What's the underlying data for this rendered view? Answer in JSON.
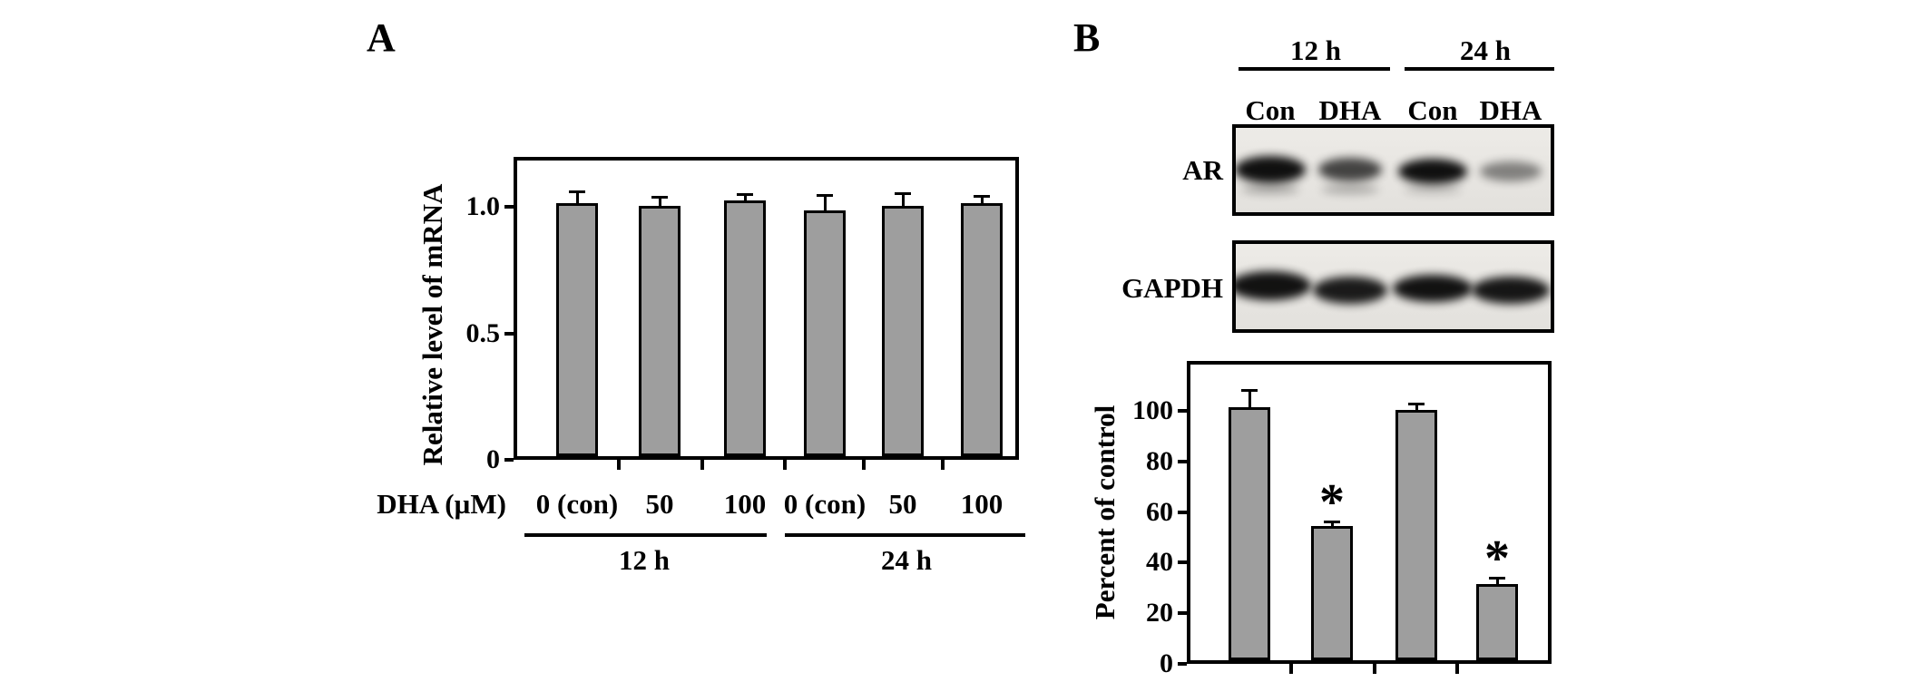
{
  "style": {
    "bar_fill": "#9e9e9e",
    "ink": "#000000",
    "blot_paper": "#e8e6e2"
  },
  "panel_a": {
    "label": "A",
    "y_axis": {
      "title": "Relative level of mRNA",
      "ticks": [
        {
          "label": "1.0",
          "value": 1.0
        },
        {
          "label": "0.5",
          "value": 0.5
        },
        {
          "label": "0",
          "value": 0
        }
      ]
    },
    "x_axis": {
      "title": "DHA (µM)",
      "labels": [
        "0 (con)",
        "50",
        "100",
        "0 (con)",
        "50",
        "100"
      ],
      "group_labels": [
        "12 h",
        "24 h"
      ]
    }
  },
  "panel_b": {
    "label": "B",
    "time_group_labels": [
      "12 h",
      "24 h"
    ],
    "lane_labels": [
      "Con",
      "DHA",
      "Con",
      "DHA"
    ],
    "blots": [
      {
        "name": "AR",
        "band_intensities": [
          0.95,
          0.72,
          0.95,
          0.45
        ],
        "sub_band_intensities": [
          0.28,
          0.26,
          0.18,
          0
        ]
      },
      {
        "name": "GAPDH",
        "band_intensities": [
          0.94,
          0.9,
          0.94,
          0.92
        ],
        "sub_band_intensities": [
          0,
          0,
          0,
          0
        ]
      }
    ],
    "y_axis": {
      "title": "Percent of control",
      "ticks": [
        {
          "label": "100",
          "value": 100
        },
        {
          "label": "80",
          "value": 80
        },
        {
          "label": "60",
          "value": 60
        },
        {
          "label": "40",
          "value": 40
        },
        {
          "label": "20",
          "value": 20
        },
        {
          "label": "0",
          "value": 0
        }
      ]
    }
  },
  "chart_data": [
    {
      "id": "panel-a-mrna-bar-chart",
      "type": "bar",
      "title": "",
      "ylabel": "Relative level of mRNA",
      "xlabel": "DHA (µM)",
      "x_tick_labels": [
        "0 (con)",
        "50",
        "100",
        "0 (con)",
        "50",
        "100"
      ],
      "group_labels": [
        "12 h",
        "24 h"
      ],
      "categories": [
        "0 (con) / 12 h",
        "50 / 12 h",
        "100 / 12 h",
        "0 (con) / 24 h",
        "50 / 24 h",
        "100 / 24 h"
      ],
      "values": [
        1.0,
        0.99,
        1.01,
        0.97,
        0.99,
        1.0
      ],
      "errors": [
        0.05,
        0.04,
        0.03,
        0.065,
        0.055,
        0.032
      ],
      "significance": [
        "",
        "",
        "",
        "",
        "",
        ""
      ],
      "ylim": [
        0,
        1.21
      ],
      "y_ticks": [
        0,
        0.5,
        1.0
      ],
      "bar_color": "#9e9e9e",
      "grid": false,
      "legend": "none"
    },
    {
      "id": "panel-b-ar-protein-bar-chart",
      "type": "bar",
      "title": "",
      "ylabel": "Percent of control",
      "xlabel": "",
      "categories": [
        "Con / 12 h",
        "DHA / 12 h",
        "Con / 24 h",
        "DHA / 24 h"
      ],
      "values": [
        100,
        53,
        99,
        30
      ],
      "errors": [
        7,
        2,
        3,
        3
      ],
      "significance": [
        "",
        "*",
        "",
        "*"
      ],
      "ylim": [
        0,
        120
      ],
      "y_ticks": [
        0,
        20,
        40,
        60,
        80,
        100
      ],
      "bar_color": "#9e9e9e",
      "grid": false,
      "legend": "none"
    }
  ]
}
